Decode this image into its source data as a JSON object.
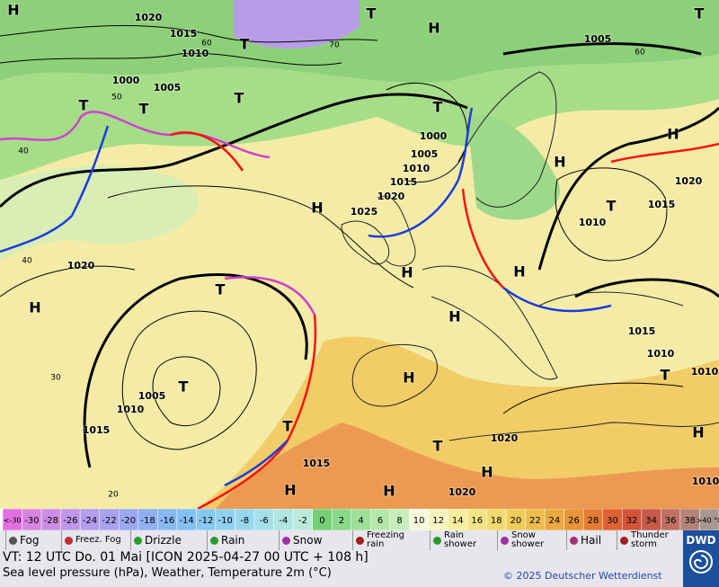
{
  "map": {
    "labels": [
      "H",
      "1020",
      "1015",
      "T",
      "T",
      "H",
      "T",
      "1005",
      "1010",
      "1000",
      "1005",
      "T",
      "T",
      "T",
      "T",
      "1000",
      "1005",
      "1010",
      "1015",
      "1020",
      "H",
      "H",
      "1020",
      "1025",
      "H",
      "T",
      "1010",
      "1015",
      "1020",
      "H",
      "H",
      "T",
      "H",
      "H",
      "1015",
      "1010",
      "H",
      "T",
      "1010",
      "1005",
      "T",
      "1010",
      "1015",
      "H",
      "1020",
      "T",
      "T",
      "H",
      "1015",
      "H",
      "H",
      "1020",
      "1010",
      "30",
      "20",
      "60",
      "60",
      "70",
      "40",
      "40",
      "50"
    ]
  },
  "colorbar": {
    "labels": [
      "<-30",
      -30,
      -28,
      -26,
      -24,
      -22,
      -20,
      -18,
      -16,
      -14,
      -12,
      -10,
      -8,
      -6,
      -4,
      -2,
      0,
      2,
      4,
      6,
      8,
      10,
      12,
      14,
      16,
      18,
      20,
      22,
      24,
      26,
      28,
      30,
      32,
      34,
      36,
      38,
      ">40 °C"
    ],
    "colors": [
      "#e070e0",
      "#d884e0",
      "#cc8ee6",
      "#c096ea",
      "#b49cee",
      "#a8a2f0",
      "#9aa8f2",
      "#90b0f4",
      "#88b8f4",
      "#84c0f4",
      "#88c8f2",
      "#90d0f0",
      "#98d8ee",
      "#a4e0ea",
      "#b0e6e2",
      "#bceada",
      "#74d074",
      "#8ad88a",
      "#9ee09a",
      "#b2e8a8",
      "#c6eeb8",
      "#f8f8dc",
      "#f8f4c0",
      "#f6ee9e",
      "#f4e486",
      "#f2da70",
      "#f0cc5c",
      "#eebc4c",
      "#eca840",
      "#e89438",
      "#e47c34",
      "#e06234",
      "#d4543a",
      "#c85a4a",
      "#c07060",
      "#b48478",
      "#a89890"
    ]
  },
  "legend": [
    "Fog",
    "Freez. Fog",
    "Drizzle",
    "Rain",
    "Snow",
    "Freezing rain",
    "Rain shower",
    "Snow shower",
    "Hail",
    "Thunder storm"
  ],
  "footer": {
    "valid_time": "VT: 12 UTC Do.  01 Mai [ICON 2025-04-27  00 UTC + 108 h]",
    "description": "Sea level pressure (hPa), Weather, Temperature 2m (°C)",
    "copyright": "© 2025 Deutscher Wetterdienst",
    "logo": "DWD"
  }
}
